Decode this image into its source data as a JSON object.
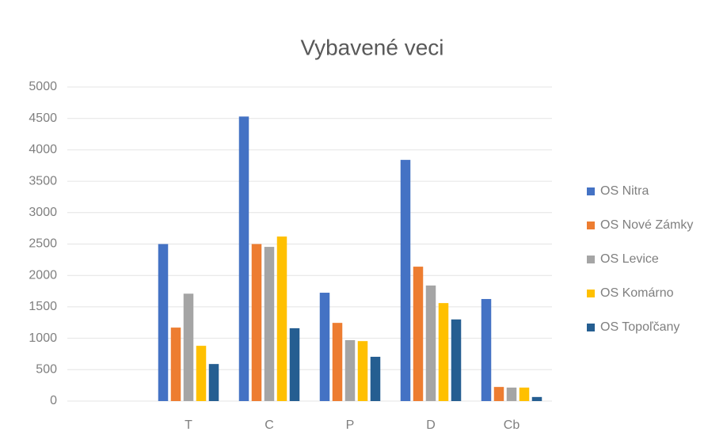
{
  "chart_data": {
    "type": "bar",
    "title": "Vybavené veci",
    "categories": [
      null,
      "T",
      "C",
      "P",
      "D",
      "Cb"
    ],
    "series": [
      {
        "name": "OS Nitra",
        "color": "#4472c4",
        "values": [
          null,
          2500,
          4530,
          1725,
          3840,
          1625
        ]
      },
      {
        "name": "OS Nové Zámky",
        "color": "#ed7d31",
        "values": [
          null,
          1170,
          2500,
          1245,
          2140,
          225
        ]
      },
      {
        "name": "OS Levice",
        "color": "#a5a5a5",
        "values": [
          null,
          1710,
          2455,
          970,
          1840,
          215
        ]
      },
      {
        "name": "OS Komárno",
        "color": "#ffc000",
        "values": [
          null,
          880,
          2620,
          955,
          1560,
          215
        ]
      },
      {
        "name": "OS Topoľčany",
        "color": "#255e91",
        "values": [
          null,
          590,
          1160,
          705,
          1300,
          65
        ]
      }
    ],
    "ylim": [
      0,
      5000
    ],
    "yticks": [
      0,
      500,
      1000,
      1500,
      2000,
      2500,
      3000,
      3500,
      4000,
      4500,
      5000
    ],
    "grid": true,
    "legend": "right"
  }
}
